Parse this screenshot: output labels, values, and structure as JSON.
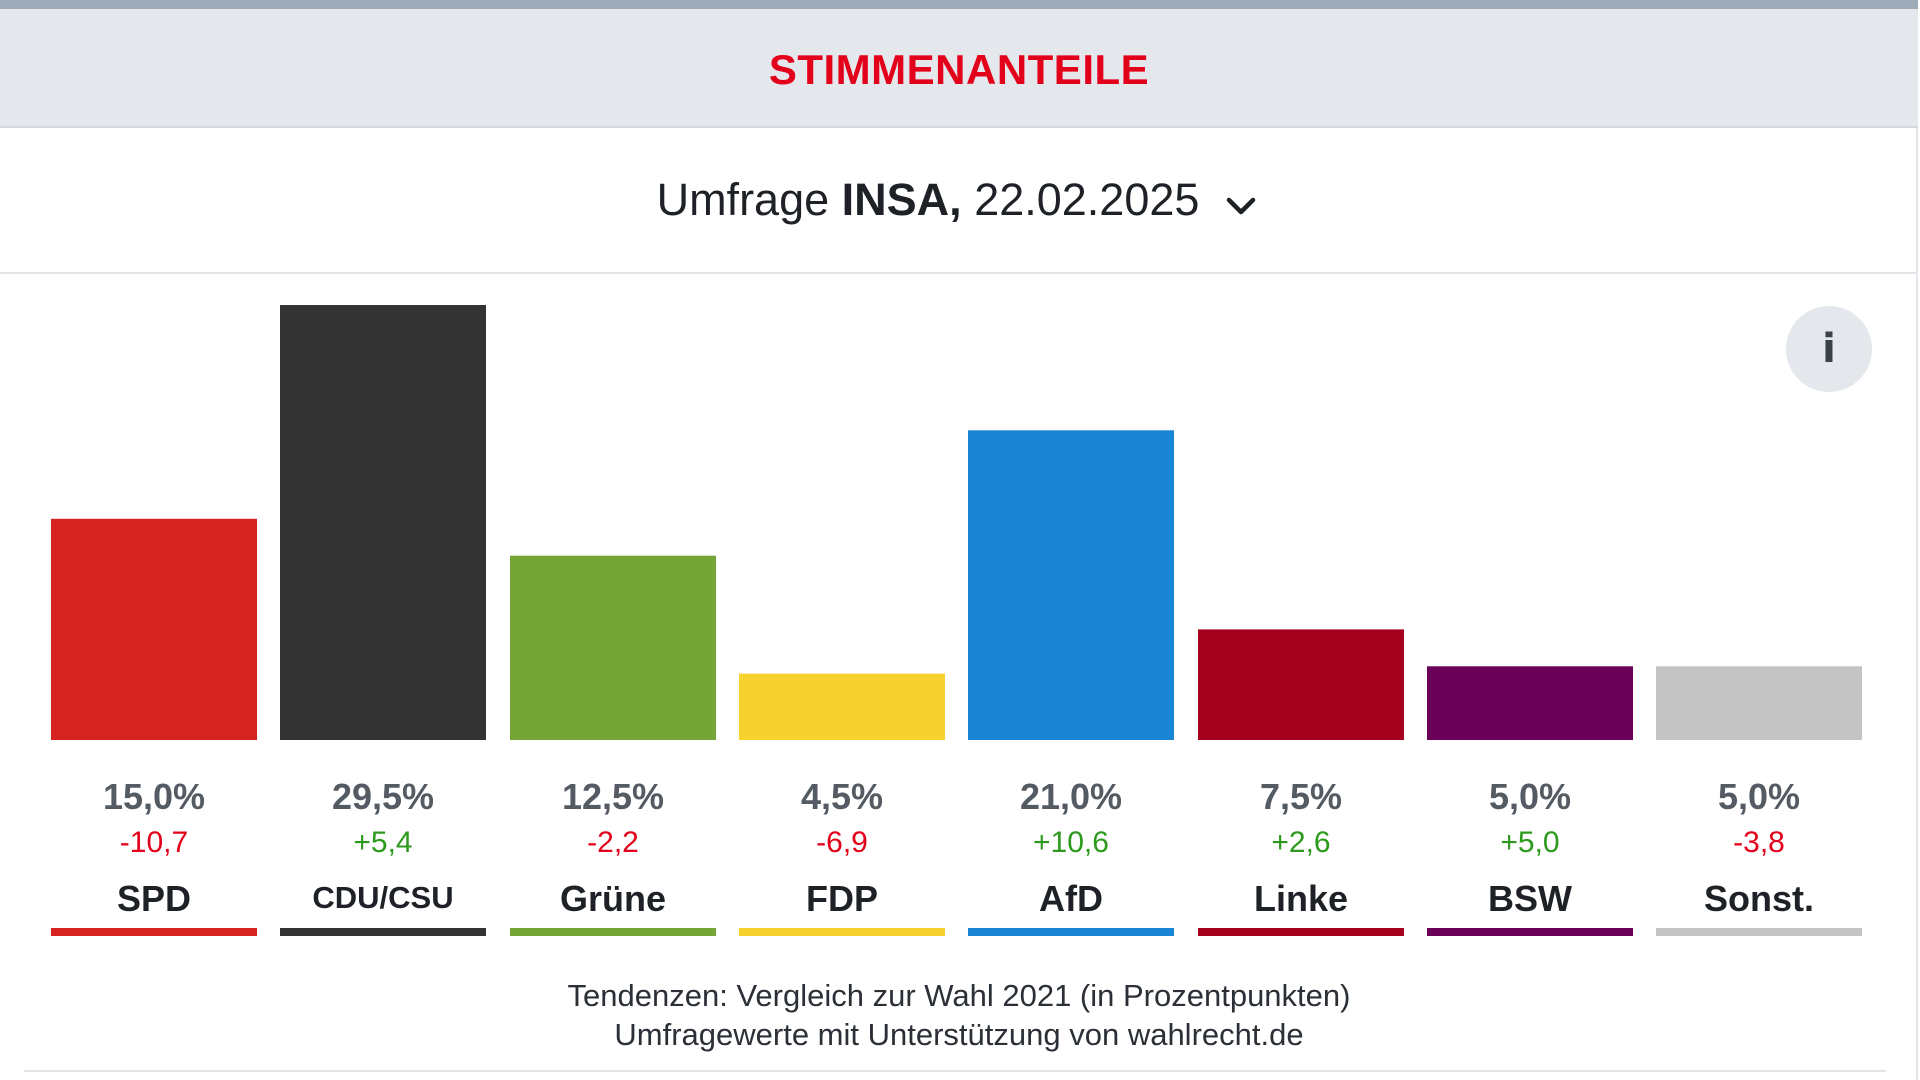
{
  "header": {
    "title": "STIMMENANTEILE"
  },
  "poll": {
    "prefix": "Umfrage",
    "institute": "INSA,",
    "date": "22.02.2025"
  },
  "info_button": {
    "label": "i"
  },
  "chart_data": {
    "type": "bar",
    "title": "STIMMENANTEILE",
    "xlabel": "",
    "ylabel": "",
    "ylim": [
      0,
      29.5
    ],
    "grid": false,
    "categories": [
      "SPD",
      "CDU/CSU",
      "Grüne",
      "FDP",
      "AfD",
      "Linke",
      "BSW",
      "Sonst."
    ],
    "values": [
      15.0,
      29.5,
      12.5,
      4.5,
      21.0,
      7.5,
      5.0,
      5.0
    ],
    "value_labels": [
      "15,0%",
      "29,5%",
      "12,5%",
      "4,5%",
      "21,0%",
      "7,5%",
      "5,0%",
      "5,0%"
    ],
    "changes": [
      -10.7,
      5.4,
      -2.2,
      -6.9,
      10.6,
      2.6,
      5.0,
      -3.8
    ],
    "change_labels": [
      "-10,7",
      "+5,4",
      "-2,2",
      "-6,9",
      "+10,6",
      "+2,6",
      "+5,0",
      "-3,8"
    ],
    "colors": [
      "#d52322",
      "#333333",
      "#74a535",
      "#f7d12e",
      "#1a84d5",
      "#a5001e",
      "#6b0058",
      "#c4c4c4"
    ],
    "change_colors": {
      "negative": "#e3001b",
      "positive": "#2d9a1e"
    }
  },
  "footer": {
    "line1": "Tendenzen: Vergleich zur Wahl 2021 (in Prozentpunkten)",
    "line2": "Umfragewerte mit Unterstützung von wahlrecht.de"
  },
  "icons": {
    "dropdown": "chevron-down-icon",
    "info": "info-icon"
  }
}
